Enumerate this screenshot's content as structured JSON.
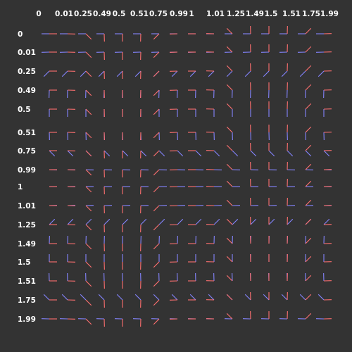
{
  "figure": {
    "background": "#333333",
    "label_color": "#ffffff",
    "colors": {
      "seg_a": "#8585ff",
      "seg_b": "#ff7070"
    },
    "column_labels": [
      "0",
      "0.01",
      "0.25",
      "0.49",
      "0.5",
      "0.51",
      "0.75",
      "0.99",
      "1",
      "1.01",
      "1.25",
      "1.49",
      "1.5",
      "1.51",
      "1.75",
      "1.99"
    ],
    "row_labels": [
      "0",
      "0.01",
      "0.25",
      "0.49",
      "0.5",
      "0.51",
      "0.75",
      "0.99",
      "1",
      "1.01",
      "1.25",
      "1.49",
      "1.5",
      "1.51",
      "1.75",
      "1.99"
    ],
    "col_values": [
      0,
      0.01,
      0.25,
      0.49,
      0.5,
      0.51,
      0.75,
      0.99,
      1,
      1.01,
      1.25,
      1.49,
      1.5,
      1.51,
      1.75,
      1.99
    ],
    "row_values": [
      0,
      0.01,
      0.25,
      0.49,
      0.5,
      0.51,
      0.75,
      0.99,
      1,
      1.01,
      1.25,
      1.49,
      1.5,
      1.51,
      1.75,
      1.99
    ]
  }
}
